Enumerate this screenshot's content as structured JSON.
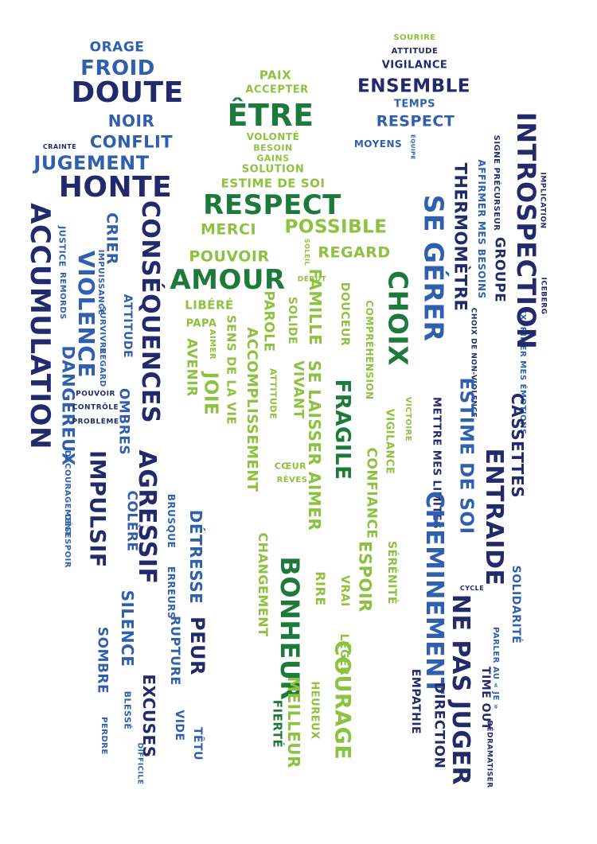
{
  "colors": {
    "navy": "#232a6b",
    "blue": "#2f5fae",
    "dark_green": "#1e7a3c",
    "light_green": "#8cc23f"
  },
  "words": [
    {
      "text": "ORAGE",
      "color": "blue"
    },
    {
      "text": "FROID",
      "color": "blue"
    },
    {
      "text": "DOUTE",
      "color": "navy"
    },
    {
      "text": "NOIR",
      "color": "blue"
    },
    {
      "text": "CONFLIT",
      "color": "blue"
    },
    {
      "text": "CRAINTE",
      "color": "navy"
    },
    {
      "text": "JUGEMENT",
      "color": "blue"
    },
    {
      "text": "HONTE",
      "color": "navy"
    },
    {
      "text": "ACCUMULATION",
      "color": "navy"
    },
    {
      "text": "VIOLENCE",
      "color": "blue"
    },
    {
      "text": "CRIER",
      "color": "blue"
    },
    {
      "text": "CONSÉQUENCES",
      "color": "navy"
    },
    {
      "text": "JUSTICE",
      "color": "blue"
    },
    {
      "text": "REMORDS",
      "color": "blue"
    },
    {
      "text": "IMPUISSANCE",
      "color": "blue"
    },
    {
      "text": "SURVIVRE",
      "color": "blue"
    },
    {
      "text": "ATTITUDE",
      "color": "blue"
    },
    {
      "text": "REGARD",
      "color": "blue"
    },
    {
      "text": "DANGEREUX",
      "color": "blue"
    },
    {
      "text": "POUVOIR",
      "color": "navy"
    },
    {
      "text": "CONTRÔLE",
      "color": "navy"
    },
    {
      "text": "PROBLÈME",
      "color": "navy"
    },
    {
      "text": "OMBRES",
      "color": "blue"
    },
    {
      "text": "IMPULSIF",
      "color": "navy"
    },
    {
      "text": "AGRESSIF",
      "color": "navy"
    },
    {
      "text": "DÉCOURAGEMENT",
      "color": "blue"
    },
    {
      "text": "DÉSESPOIR",
      "color": "blue"
    },
    {
      "text": "COLÈRE",
      "color": "blue"
    },
    {
      "text": "BRUSQUE",
      "color": "blue"
    },
    {
      "text": "DÉTRESSE",
      "color": "blue"
    },
    {
      "text": "SILENCE",
      "color": "blue"
    },
    {
      "text": "ERREURS",
      "color": "blue"
    },
    {
      "text": "RUPTURE",
      "color": "blue"
    },
    {
      "text": "PEUR",
      "color": "navy"
    },
    {
      "text": "SOMBRE",
      "color": "blue"
    },
    {
      "text": "EXCUSES",
      "color": "navy"
    },
    {
      "text": "BLESSÉ",
      "color": "blue"
    },
    {
      "text": "PERDRE",
      "color": "blue"
    },
    {
      "text": "DIFFICILE",
      "color": "blue"
    },
    {
      "text": "VIDE",
      "color": "blue"
    },
    {
      "text": "TÊTU",
      "color": "blue"
    },
    {
      "text": "PAIX",
      "color": "light_green"
    },
    {
      "text": "ACCEPTER",
      "color": "light_green"
    },
    {
      "text": "ÊTRE",
      "color": "dark_green"
    },
    {
      "text": "VOLONTÉ",
      "color": "light_green"
    },
    {
      "text": "BESOIN",
      "color": "light_green"
    },
    {
      "text": "GAINS",
      "color": "light_green"
    },
    {
      "text": "SOLUTION",
      "color": "light_green"
    },
    {
      "text": "ESTIME DE SOI",
      "color": "light_green"
    },
    {
      "text": "RESPECT",
      "color": "dark_green"
    },
    {
      "text": "MERCI",
      "color": "light_green"
    },
    {
      "text": "POSSIBLE",
      "color": "light_green"
    },
    {
      "text": "POUVOIR",
      "color": "light_green"
    },
    {
      "text": "SOLEIL",
      "color": "light_green"
    },
    {
      "text": "REGARD",
      "color": "light_green"
    },
    {
      "text": "AMOUR",
      "color": "dark_green"
    },
    {
      "text": "DÉBUT",
      "color": "light_green"
    },
    {
      "text": "LIBÉRÉ",
      "color": "light_green"
    },
    {
      "text": "PAPA",
      "color": "light_green"
    },
    {
      "text": "AVENIR",
      "color": "light_green"
    },
    {
      "text": "AIMER",
      "color": "light_green"
    },
    {
      "text": "JOIE",
      "color": "light_green"
    },
    {
      "text": "SENS DE LA VIE",
      "color": "light_green"
    },
    {
      "text": "ACCOMPLISSEMENT",
      "color": "light_green"
    },
    {
      "text": "PAROLE",
      "color": "light_green"
    },
    {
      "text": "SOLIDE",
      "color": "light_green"
    },
    {
      "text": "ATTITUDE",
      "color": "light_green"
    },
    {
      "text": "VIVANT",
      "color": "light_green"
    },
    {
      "text": "SE LAISSER AIMER",
      "color": "light_green"
    },
    {
      "text": "FAMILLE",
      "color": "light_green"
    },
    {
      "text": "DOUCEUR",
      "color": "light_green"
    },
    {
      "text": "FRAGILE",
      "color": "dark_green"
    },
    {
      "text": "COMPRÉHENSION",
      "color": "light_green"
    },
    {
      "text": "CHOIX",
      "color": "dark_green"
    },
    {
      "text": "VICTOIRE",
      "color": "light_green"
    },
    {
      "text": "VIGILANCE",
      "color": "light_green"
    },
    {
      "text": "CONFIANCE",
      "color": "light_green"
    },
    {
      "text": "CŒUR",
      "color": "light_green"
    },
    {
      "text": "RÊVES",
      "color": "light_green"
    },
    {
      "text": "CHANGEMENT",
      "color": "light_green"
    },
    {
      "text": "BONHEUR",
      "color": "dark_green"
    },
    {
      "text": "RIRE",
      "color": "light_green"
    },
    {
      "text": "VRAI",
      "color": "light_green"
    },
    {
      "text": "ESPOIR",
      "color": "light_green"
    },
    {
      "text": "SÉRÉNITÉ",
      "color": "light_green"
    },
    {
      "text": "LÉGER",
      "color": "light_green"
    },
    {
      "text": "COURAGE",
      "color": "light_green"
    },
    {
      "text": "FIERTÉ",
      "color": "dark_green"
    },
    {
      "text": "MEILLEUR",
      "color": "light_green"
    },
    {
      "text": "HEUREUX",
      "color": "light_green"
    },
    {
      "text": "SOURIRE",
      "color": "light_green"
    },
    {
      "text": "ATTITUDE",
      "color": "navy"
    },
    {
      "text": "VIGILANCE",
      "color": "navy"
    },
    {
      "text": "ENSEMBLE",
      "color": "navy"
    },
    {
      "text": "TEMPS",
      "color": "blue"
    },
    {
      "text": "RESPECT",
      "color": "blue"
    },
    {
      "text": "MOYENS",
      "color": "blue"
    },
    {
      "text": "ÉQUIPE",
      "color": "blue"
    },
    {
      "text": "SE GÉRER",
      "color": "blue"
    },
    {
      "text": "THERMOMÈTRE",
      "color": "navy"
    },
    {
      "text": "AFFIRMER MES BESOINS",
      "color": "blue"
    },
    {
      "text": "CHOIX DE NON-VIOLENCE",
      "color": "navy"
    },
    {
      "text": "SIGNE PRÉCURSEUR",
      "color": "navy"
    },
    {
      "text": "GROUPE",
      "color": "navy"
    },
    {
      "text": "EXPRIMER MES ÉMOTIONS",
      "color": "blue"
    },
    {
      "text": "INTROSPECTION",
      "color": "navy"
    },
    {
      "text": "ICEBERG",
      "color": "navy"
    },
    {
      "text": "IMPLICATION",
      "color": "navy"
    },
    {
      "text": "METTRE MES LIMITES",
      "color": "navy"
    },
    {
      "text": "ESTIME DE SOI",
      "color": "blue"
    },
    {
      "text": "CHEMINEMENT",
      "color": "blue"
    },
    {
      "text": "CYCLE",
      "color": "navy"
    },
    {
      "text": "ENTRAIDE",
      "color": "navy"
    },
    {
      "text": "CASSETTES",
      "color": "navy"
    },
    {
      "text": "SOLIDARITÉ",
      "color": "blue"
    },
    {
      "text": "PARLER AU « JE »",
      "color": "blue"
    },
    {
      "text": "NE PAS JUGER",
      "color": "navy"
    },
    {
      "text": "TIME OUT",
      "color": "navy"
    },
    {
      "text": "DÉDRAMATISER",
      "color": "navy"
    },
    {
      "text": "EMPATHIE",
      "color": "navy"
    },
    {
      "text": "DIRECTION",
      "color": "navy"
    },
    {
      "text": "LÂCHER PRISE",
      "color": "blue"
    }
  ]
}
